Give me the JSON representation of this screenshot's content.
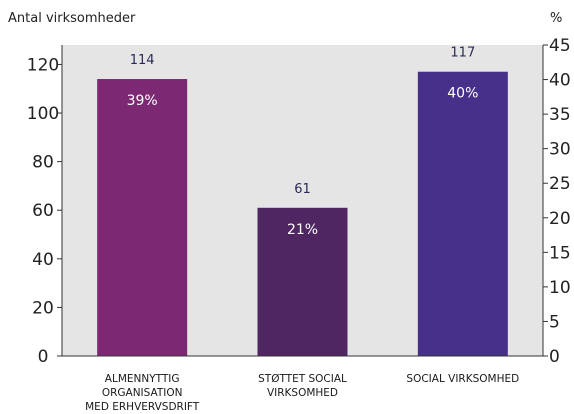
{
  "chart_data": {
    "type": "bar",
    "categories": [
      "ALMENNYTTIG ORGANISATION MED ERHVERVSDRIFT",
      "STØTTET SOCIAL VIRKSOMHED",
      "SOCIAL VIRKSOMHED"
    ],
    "category_lines": [
      [
        "ALMENNYTTIG",
        "ORGANISATION",
        "MED ERHVERVSDRIFT"
      ],
      [
        "STØTTET SOCIAL",
        "VIRKSOMHED"
      ],
      [
        "SOCIAL VIRKSOMHED"
      ]
    ],
    "values": [
      114,
      61,
      117
    ],
    "value_labels": [
      "114",
      "61",
      "117"
    ],
    "percent_labels": [
      "39%",
      "21%",
      "40%"
    ],
    "bar_colors": [
      "#7d2872",
      "#4f2562",
      "#46308a"
    ],
    "ylabel": "Antal virksomheder",
    "ylabel_right": "%",
    "ylim": [
      0,
      128
    ],
    "yticks": [
      0,
      20,
      40,
      60,
      80,
      100,
      120
    ],
    "ylim_right": [
      0,
      45
    ],
    "yticks_right": [
      0,
      5,
      10,
      15,
      20,
      25,
      30,
      35,
      40,
      45
    ],
    "plot_background": "#e5e5e5",
    "grid": false
  }
}
